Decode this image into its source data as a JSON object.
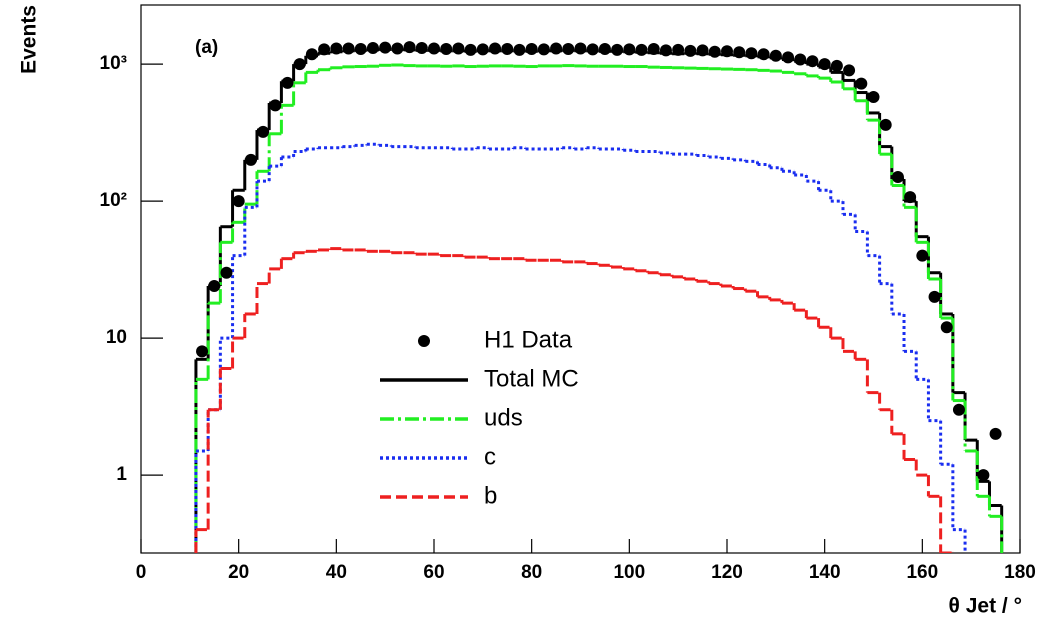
{
  "chart_data": {
    "type": "histogram",
    "annotation": "(a)",
    "y_label": "Events",
    "x_label": "θ Jet / °",
    "log_y": true,
    "legend": "lower center",
    "xlim": [
      0,
      180
    ],
    "xticks": [
      0,
      20,
      40,
      60,
      80,
      100,
      120,
      140,
      160,
      180
    ],
    "ylim": [
      0.27,
      2700
    ],
    "yticks": [
      1,
      10,
      {
        "value": 100,
        "label": "10²"
      },
      {
        "value": 1000,
        "label": "10³"
      }
    ],
    "bins": [
      11.25,
      13.75,
      16.25,
      18.75,
      21.25,
      23.75,
      26.25,
      28.75,
      31.25,
      33.75,
      36.25,
      38.75,
      41.25,
      43.75,
      46.25,
      48.75,
      51.25,
      53.75,
      56.25,
      58.75,
      61.25,
      63.75,
      66.25,
      68.75,
      71.25,
      73.75,
      76.25,
      78.75,
      81.25,
      83.75,
      86.25,
      88.75,
      91.25,
      93.75,
      96.25,
      98.75,
      101.25,
      103.75,
      106.25,
      108.75,
      111.25,
      113.75,
      116.25,
      118.75,
      121.25,
      123.75,
      126.25,
      128.75,
      131.25,
      133.75,
      136.25,
      138.75,
      141.25,
      143.75,
      146.25,
      148.75,
      151.25,
      153.75,
      156.25,
      158.75,
      161.25,
      163.75,
      166.25,
      168.75,
      171.25,
      173.75,
      176.25
    ],
    "series": [
      {
        "name": "H1 Data",
        "color": "#000000",
        "style": "points",
        "values": [
          8,
          24,
          30,
          100,
          200,
          320,
          500,
          730,
          1000,
          1180,
          1280,
          1300,
          1300,
          1290,
          1310,
          1320,
          1300,
          1330,
          1310,
          1300,
          1290,
          1300,
          1270,
          1280,
          1300,
          1290,
          1270,
          1290,
          1280,
          1300,
          1290,
          1300,
          1280,
          1290,
          1270,
          1280,
          1270,
          1290,
          1260,
          1270,
          1250,
          1260,
          1230,
          1240,
          1220,
          1200,
          1180,
          1150,
          1120,
          1080,
          1050,
          1000,
          970,
          900,
          720,
          575,
          360,
          150,
          107,
          40,
          20,
          12,
          3,
          null,
          1,
          2
        ]
      },
      {
        "name": "Total MC",
        "color": "#000000",
        "style": "solid",
        "values": [
          7,
          24,
          65,
          120,
          200,
          330,
          520,
          750,
          1000,
          1150,
          1200,
          1230,
          1250,
          1260,
          1270,
          1280,
          1280,
          1270,
          1260,
          1260,
          1250,
          1250,
          1240,
          1250,
          1250,
          1250,
          1250,
          1240,
          1250,
          1250,
          1260,
          1250,
          1250,
          1240,
          1240,
          1230,
          1220,
          1210,
          1200,
          1190,
          1200,
          1190,
          1180,
          1170,
          1160,
          1150,
          1130,
          1110,
          1080,
          1050,
          1000,
          950,
          870,
          760,
          620,
          440,
          250,
          145,
          100,
          55,
          30,
          15,
          4,
          1.8,
          0.9,
          0.6
        ]
      },
      {
        "name": "uds",
        "color": "#22ee22",
        "style": "dashdot",
        "values": [
          5,
          18,
          50,
          70,
          95,
          165,
          310,
          500,
          730,
          870,
          910,
          940,
          955,
          960,
          965,
          980,
          985,
          975,
          970,
          970,
          965,
          970,
          960,
          965,
          970,
          970,
          965,
          960,
          970,
          970,
          975,
          970,
          965,
          965,
          965,
          960,
          960,
          950,
          945,
          940,
          935,
          930,
          925,
          920,
          915,
          910,
          900,
          890,
          870,
          850,
          820,
          790,
          740,
          660,
          540,
          390,
          220,
          130,
          90,
          50,
          27,
          14,
          3.5,
          1.5,
          0.7,
          0.5
        ]
      },
      {
        "name": "c",
        "color": "#1a2ef0",
        "style": "dotted",
        "values": [
          1.5,
          3,
          10,
          40,
          90,
          140,
          180,
          210,
          230,
          240,
          245,
          245,
          250,
          255,
          260,
          255,
          250,
          250,
          245,
          245,
          245,
          240,
          240,
          245,
          240,
          240,
          245,
          240,
          240,
          240,
          245,
          240,
          245,
          240,
          240,
          235,
          230,
          230,
          225,
          220,
          220,
          215,
          210,
          205,
          200,
          195,
          185,
          175,
          165,
          155,
          140,
          120,
          100,
          80,
          60,
          40,
          25,
          15,
          8,
          5,
          2.5,
          1.2,
          0.4,
          null,
          null,
          null
        ]
      },
      {
        "name": "b",
        "color": "#ee2020",
        "style": "dashed",
        "values": [
          0.4,
          3,
          6,
          10,
          15,
          25,
          32,
          38,
          42,
          43,
          44,
          45,
          44,
          44,
          43,
          43,
          42,
          42,
          41,
          41,
          40,
          40,
          39,
          39,
          38,
          38,
          38,
          37,
          37,
          37,
          36,
          36,
          35,
          34,
          33,
          32,
          31,
          30,
          29,
          28,
          27,
          26,
          25,
          24,
          23,
          22,
          20,
          19,
          18,
          16,
          14,
          12,
          10,
          8,
          7,
          4,
          3,
          2,
          1.3,
          1,
          0.7,
          0.2,
          null,
          null,
          null,
          null
        ]
      }
    ]
  }
}
